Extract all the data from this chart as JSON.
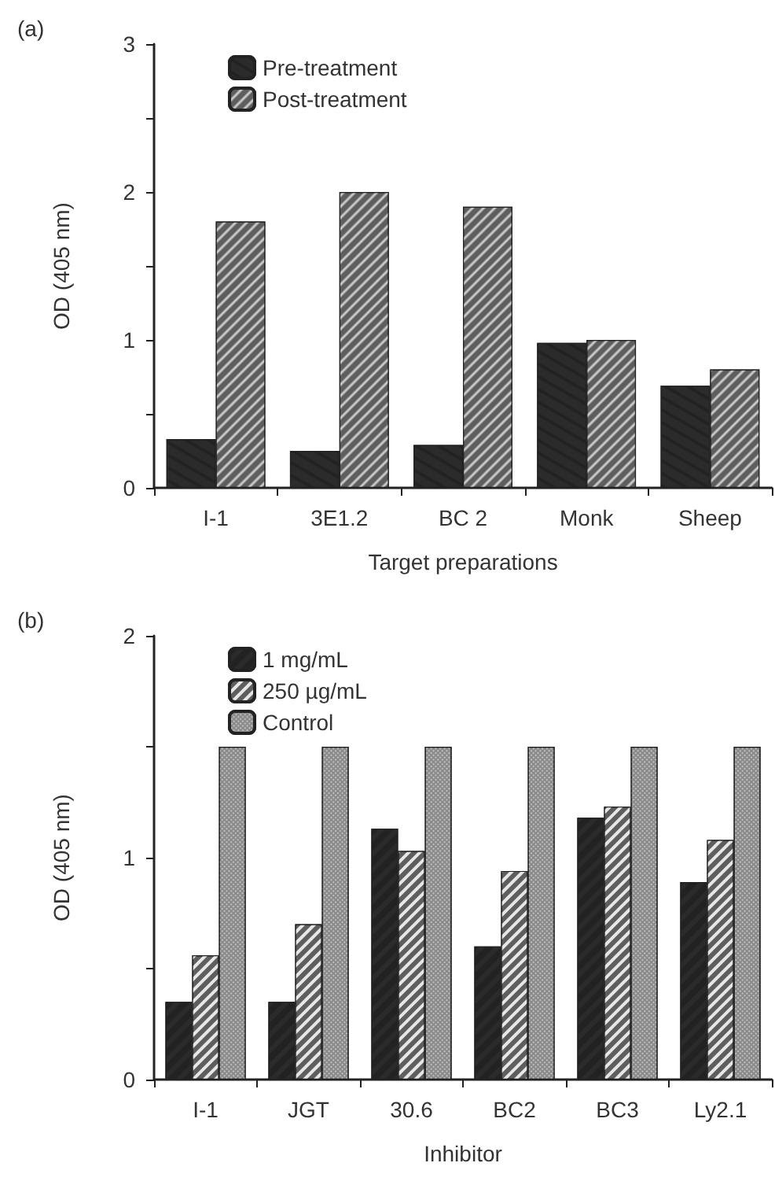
{
  "chart_data": [
    {
      "type": "bar",
      "title": "(a)",
      "xlabel": "Target preparations",
      "ylabel": "OD (405 nm)",
      "categories": [
        "I-1",
        "3E1.2",
        "BC 2",
        "Monk",
        "Sheep"
      ],
      "series": [
        {
          "name": "Pre-treatment",
          "color": "#2b2b2b",
          "values": [
            0.33,
            0.25,
            0.29,
            0.98,
            0.69
          ]
        },
        {
          "name": "Post-treatment",
          "color": "#5e5e5e",
          "values": [
            1.8,
            2.0,
            1.9,
            1.0,
            0.8
          ]
        }
      ],
      "ylim": [
        0,
        3
      ],
      "yticks": [
        0,
        {
          "value": 0.5,
          "label": null
        },
        1,
        {
          "value": 1.5,
          "label": null
        },
        2,
        {
          "value": 2.5,
          "label": null
        },
        3
      ],
      "grid": false,
      "legend": "top left"
    },
    {
      "type": "bar",
      "title": "(b)",
      "xlabel": "Inhibitor",
      "ylabel": "OD (405 nm)",
      "categories": [
        "I-1",
        "JGT",
        "30.6",
        "BC2",
        "BC3",
        "Ly2.1"
      ],
      "series": [
        {
          "name": "1 mg/mL",
          "color": "#2b2b2b",
          "values": [
            0.35,
            0.35,
            1.13,
            0.6,
            1.18,
            0.89
          ]
        },
        {
          "name": "250 µg/mL",
          "color": "#5e5e5e",
          "values": [
            0.56,
            0.7,
            1.03,
            0.94,
            1.23,
            1.08
          ]
        },
        {
          "name": "Control",
          "color": "#8a8a8a",
          "values": [
            1.5,
            1.5,
            1.5,
            1.5,
            1.5,
            1.5
          ]
        }
      ],
      "ylim": [
        0,
        2
      ],
      "yticks": [
        0,
        {
          "value": 0.5,
          "label": null
        },
        1,
        {
          "value": 1.5,
          "label": null
        },
        2
      ],
      "grid": false,
      "legend": "top left"
    }
  ]
}
